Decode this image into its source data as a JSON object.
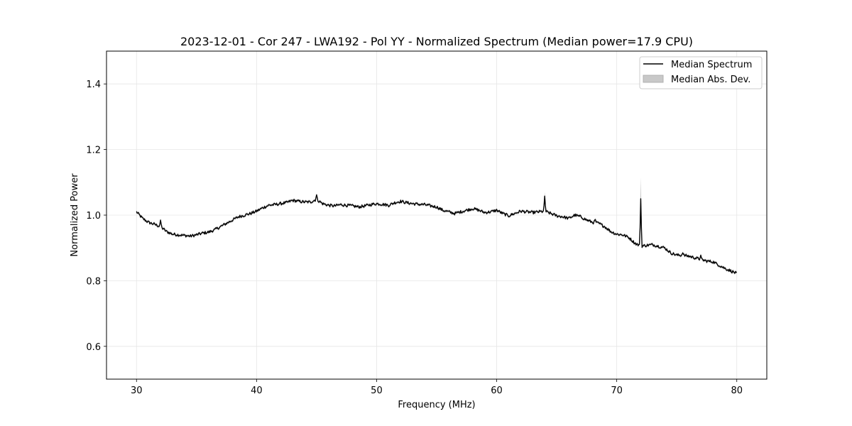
{
  "chart_data": {
    "type": "line",
    "title": "2023-12-01 - Cor 247 - LWA192 - Pol YY - Normalized Spectrum (Median power=17.9 CPU)",
    "xlabel": "Frequency (MHz)",
    "ylabel": "Normalized Power",
    "xlim": [
      27.5,
      82.5
    ],
    "ylim": [
      0.5,
      1.5
    ],
    "xticks": [
      30,
      40,
      50,
      60,
      70,
      80
    ],
    "xtick_labels": [
      "30",
      "40",
      "50",
      "60",
      "70",
      "80"
    ],
    "yticks": [
      0.6,
      0.8,
      1.0,
      1.2,
      1.4
    ],
    "ytick_labels": [
      "0.6",
      "0.8",
      "1.0",
      "1.2",
      "1.4"
    ],
    "grid": true,
    "legend_position": "top-right",
    "legend": [
      {
        "label": "Median Spectrum",
        "kind": "line",
        "color": "#000000"
      },
      {
        "label": "Median Abs. Dev.",
        "kind": "band",
        "color": "#b0b0b0"
      }
    ],
    "series": [
      {
        "name": "Median Spectrum",
        "color": "#000000",
        "x": [
          30.0,
          30.5,
          31.0,
          31.5,
          32.0,
          32.5,
          33.0,
          33.5,
          34.0,
          34.5,
          35.0,
          35.5,
          36.0,
          36.5,
          37.0,
          37.5,
          38.0,
          38.5,
          39.0,
          39.5,
          40.0,
          40.5,
          41.0,
          41.5,
          42.0,
          42.5,
          43.0,
          43.5,
          44.0,
          44.5,
          45.0,
          45.5,
          46.0,
          46.5,
          47.0,
          47.5,
          48.0,
          48.5,
          49.0,
          49.5,
          50.0,
          50.5,
          51.0,
          51.5,
          52.0,
          52.5,
          53.0,
          53.5,
          54.0,
          54.5,
          55.0,
          55.5,
          56.0,
          56.5,
          57.0,
          57.5,
          58.0,
          58.5,
          59.0,
          59.5,
          60.0,
          60.5,
          61.0,
          61.5,
          62.0,
          62.5,
          63.0,
          63.5,
          64.0,
          64.5,
          65.0,
          65.5,
          66.0,
          66.5,
          67.0,
          67.5,
          68.0,
          68.5,
          69.0,
          69.5,
          70.0,
          70.5,
          71.0,
          71.5,
          72.0,
          72.5,
          73.0,
          73.5,
          74.0,
          74.5,
          75.0,
          75.5,
          76.0,
          76.5,
          77.0,
          77.5,
          78.0,
          78.5,
          79.0,
          79.5,
          80.0
        ],
        "y": [
          1.01,
          0.99,
          0.978,
          0.972,
          0.965,
          0.95,
          0.942,
          0.94,
          0.938,
          0.936,
          0.94,
          0.945,
          0.948,
          0.955,
          0.965,
          0.975,
          0.985,
          0.995,
          1.0,
          1.005,
          1.012,
          1.022,
          1.03,
          1.032,
          1.035,
          1.038,
          1.045,
          1.042,
          1.04,
          1.04,
          1.048,
          1.035,
          1.03,
          1.028,
          1.032,
          1.03,
          1.028,
          1.025,
          1.028,
          1.032,
          1.035,
          1.033,
          1.03,
          1.038,
          1.042,
          1.038,
          1.035,
          1.033,
          1.032,
          1.028,
          1.025,
          1.015,
          1.01,
          1.005,
          1.01,
          1.015,
          1.02,
          1.015,
          1.008,
          1.01,
          1.015,
          1.005,
          0.998,
          1.005,
          1.012,
          1.01,
          1.008,
          1.01,
          1.012,
          1.005,
          0.998,
          0.995,
          0.99,
          1.0,
          0.995,
          0.985,
          0.978,
          0.975,
          0.965,
          0.95,
          0.942,
          0.94,
          0.932,
          0.915,
          0.905,
          0.908,
          0.91,
          0.905,
          0.9,
          0.885,
          0.878,
          0.878,
          0.875,
          0.87,
          0.865,
          0.86,
          0.858,
          0.848,
          0.838,
          0.83,
          0.822
        ]
      }
    ],
    "spikes": [
      {
        "x": 32.0,
        "y": 0.985
      },
      {
        "x": 45.0,
        "y": 1.062
      },
      {
        "x": 64.0,
        "y": 1.058
      },
      {
        "x": 68.2,
        "y": 0.99
      },
      {
        "x": 72.0,
        "y": 1.05
      },
      {
        "x": 75.5,
        "y": 0.885
      },
      {
        "x": 77.0,
        "y": 0.878
      }
    ],
    "mad_band": {
      "name": "Median Abs. Dev.",
      "half_width": 0.004,
      "spike_extra": [
        {
          "x": 64.0,
          "y_upper": 1.07
        },
        {
          "x": 72.0,
          "y_upper": 1.115
        }
      ]
    }
  }
}
